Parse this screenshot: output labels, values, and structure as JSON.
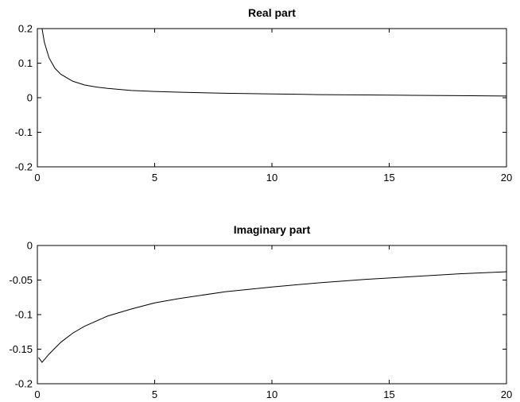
{
  "chart_data": [
    {
      "type": "line",
      "title": "Real part",
      "xlabel": "",
      "ylabel": "",
      "xlim": [
        0,
        20
      ],
      "ylim": [
        -0.2,
        0.2
      ],
      "xticks": [
        0,
        5,
        10,
        15,
        20
      ],
      "xtick_labels": [
        "0",
        "5",
        "10",
        "15",
        "20"
      ],
      "yticks": [
        0.2,
        0.1,
        0,
        -0.1,
        -0.2
      ],
      "ytick_labels": [
        "0.2",
        "0.1",
        "0",
        "-0.1",
        "-0.2"
      ],
      "grid": false,
      "series": [
        {
          "x": [
            0.05,
            0.2,
            0.3,
            0.5,
            0.75,
            1,
            1.5,
            2,
            2.5,
            3,
            4,
            5,
            6,
            8,
            10,
            12,
            14,
            16,
            18,
            20
          ],
          "y": [
            0.2,
            0.2,
            0.16,
            0.115,
            0.085,
            0.068,
            0.048,
            0.037,
            0.031,
            0.027,
            0.021,
            0.018,
            0.016,
            0.013,
            0.011,
            0.009,
            0.008,
            0.007,
            0.006,
            0.005
          ],
          "color": "#000000"
        }
      ]
    },
    {
      "type": "line",
      "title": "Imaginary part",
      "xlabel": "",
      "ylabel": "",
      "xlim": [
        0,
        20
      ],
      "ylim": [
        -0.2,
        0
      ],
      "xticks": [
        0,
        5,
        10,
        15,
        20
      ],
      "xtick_labels": [
        "0",
        "5",
        "10",
        "15",
        "20"
      ],
      "yticks": [
        0,
        -0.05,
        -0.1,
        -0.15,
        -0.2
      ],
      "ytick_labels": [
        "0",
        "-0.05",
        "-0.1",
        "-0.15",
        "-0.2"
      ],
      "grid": false,
      "series": [
        {
          "x": [
            0.05,
            0.2,
            0.5,
            1,
            1.5,
            2,
            3,
            4,
            5,
            6,
            8,
            10,
            12,
            14,
            16,
            18,
            20
          ],
          "y": [
            -0.162,
            -0.169,
            -0.157,
            -0.14,
            -0.127,
            -0.117,
            -0.102,
            -0.092,
            -0.083,
            -0.077,
            -0.067,
            -0.06,
            -0.054,
            -0.049,
            -0.045,
            -0.041,
            -0.038
          ],
          "color": "#000000"
        }
      ]
    }
  ]
}
